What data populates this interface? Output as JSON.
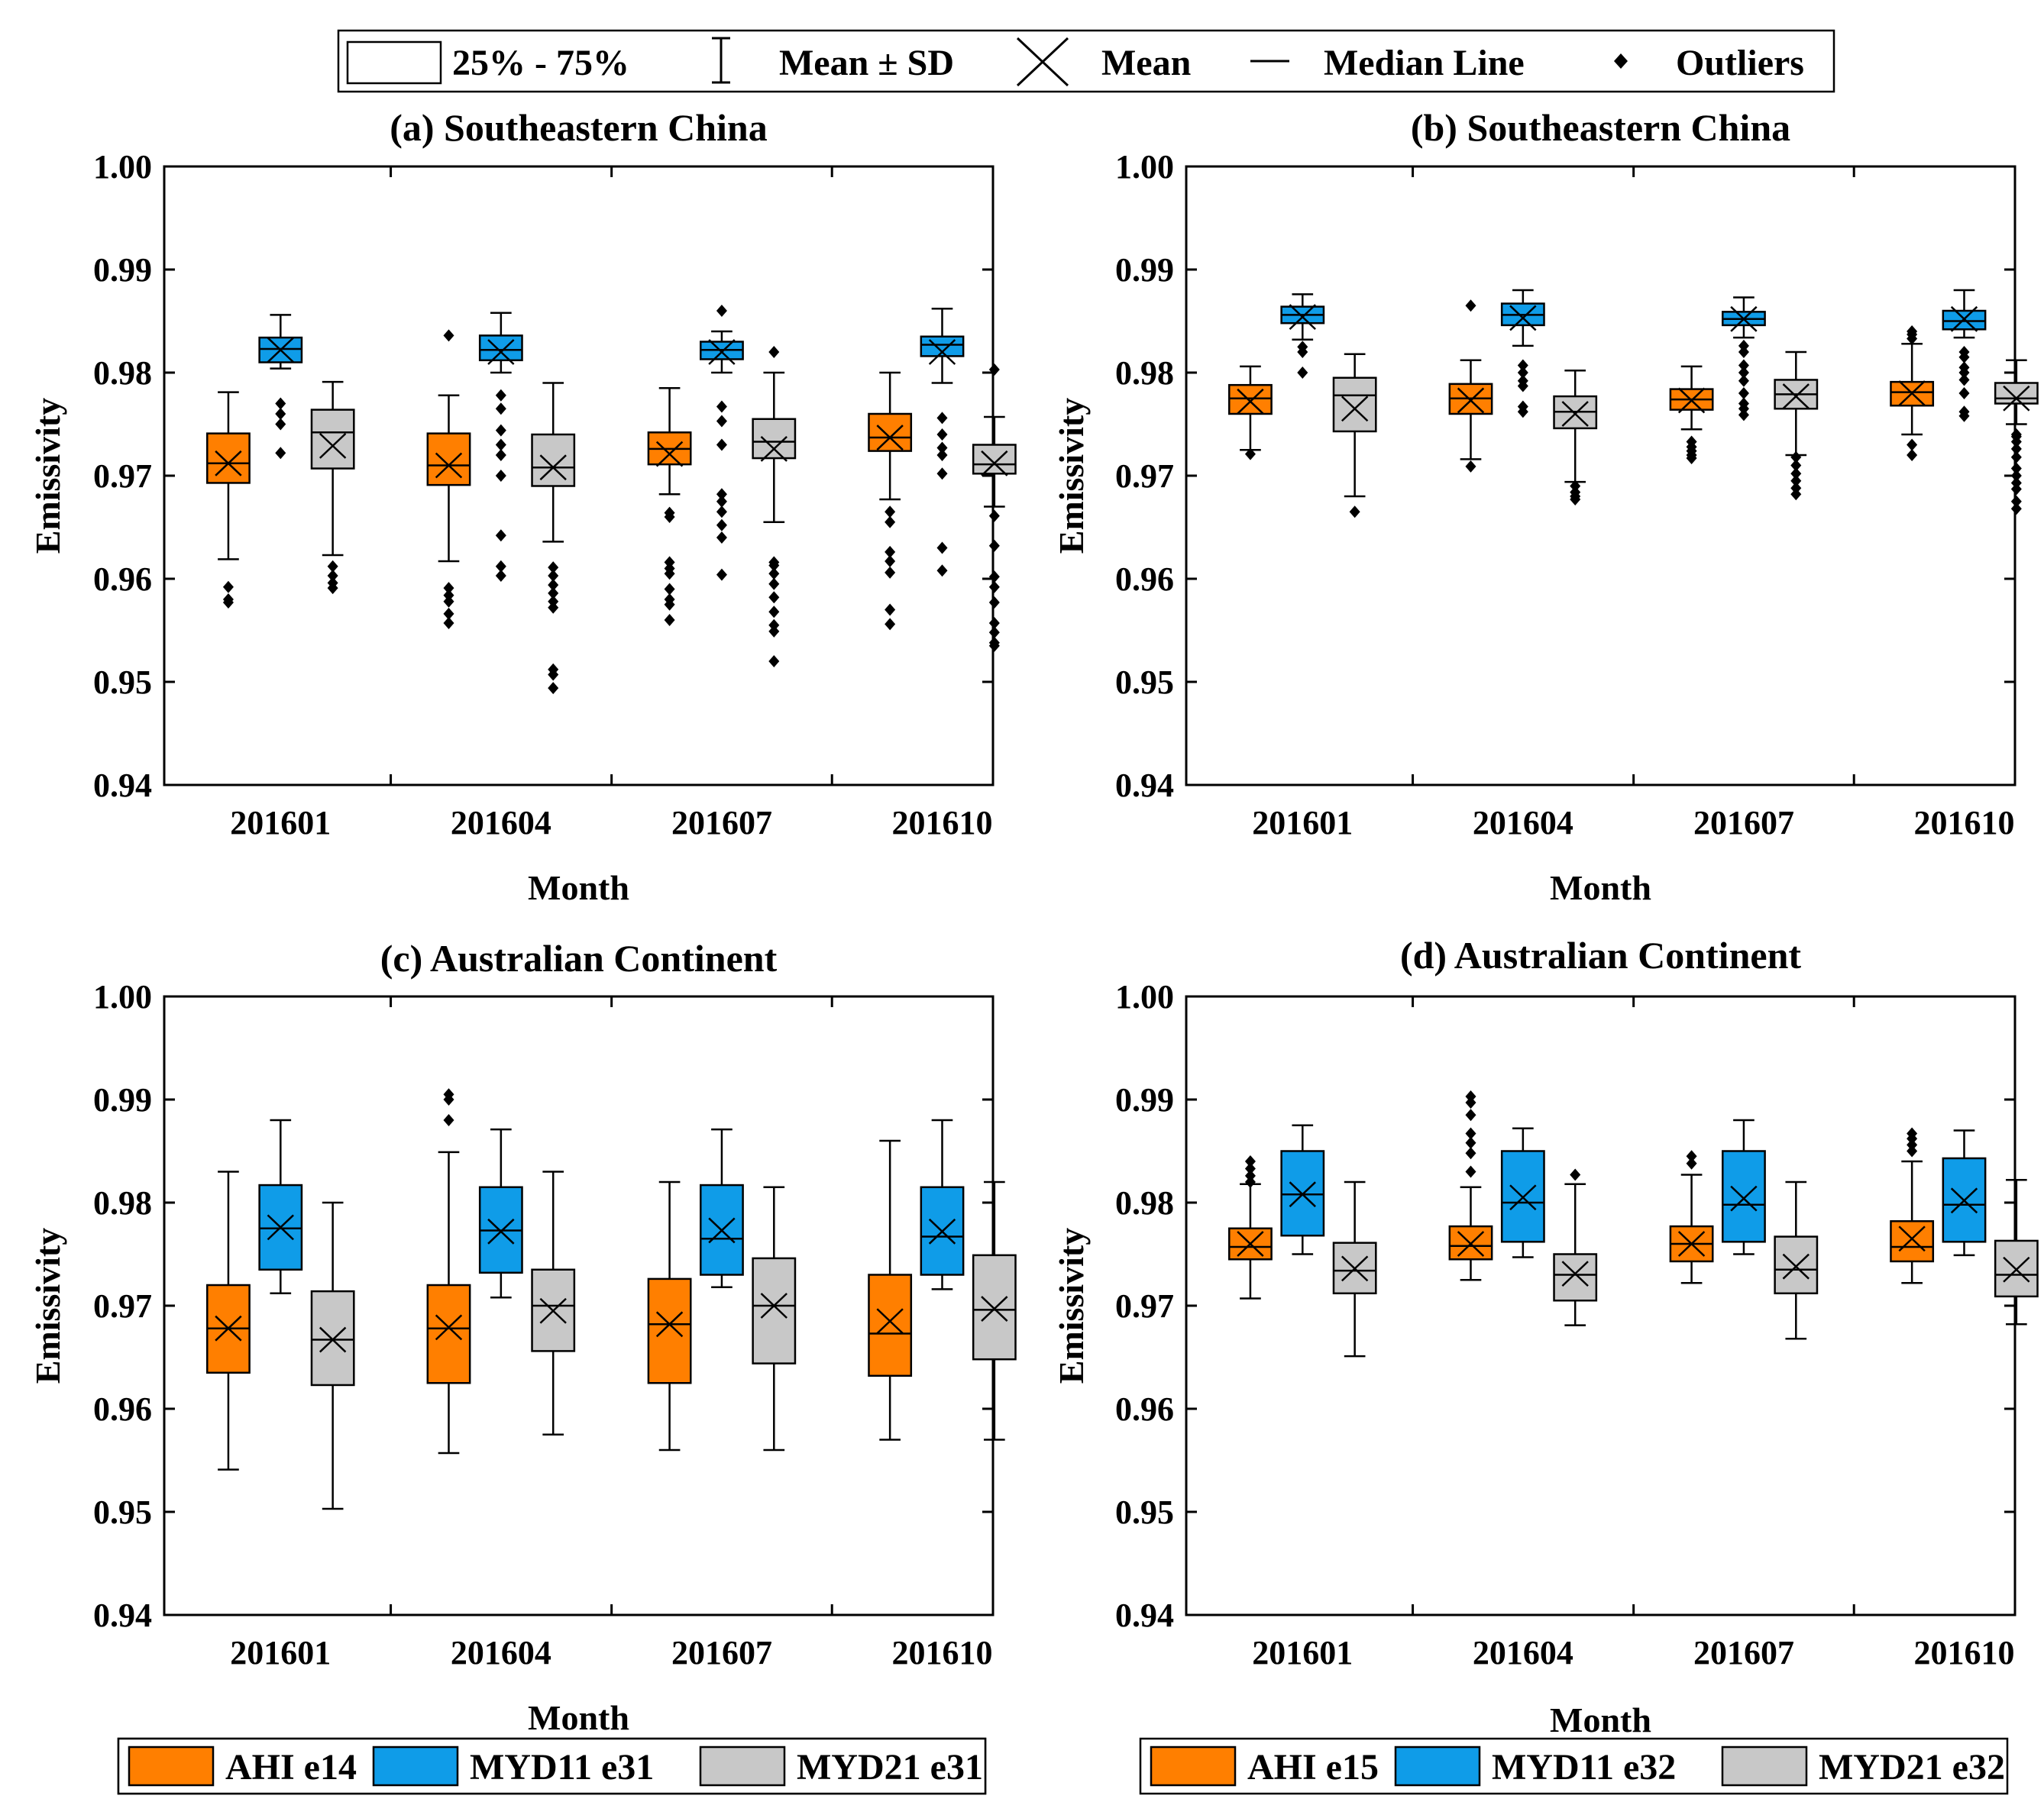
{
  "top_legend": {
    "box": "25% - 75%",
    "sd": "Mean ± SD",
    "mean": "Mean",
    "median": "Median Line",
    "outliers": "Outliers"
  },
  "colors": {
    "AHI": "#ff7f00",
    "MYD11": "#0f9ce8",
    "MYD21": "#c8c8c8"
  },
  "chart_data": [
    {
      "id": "a",
      "type": "box",
      "title": "(a) Southeastern China",
      "xlabel": "Month",
      "ylabel": "Emissivity",
      "ylim": [
        0.94,
        1.0
      ],
      "yticks": [
        "0.94",
        "0.95",
        "0.96",
        "0.97",
        "0.98",
        "0.99",
        "1.00"
      ],
      "categories": [
        "201601",
        "201604",
        "201607",
        "201610"
      ],
      "legend": [
        "AHI e14",
        "MYD11 e31",
        "MYD21 e31"
      ],
      "series": [
        {
          "name": "AHI",
          "boxes": [
            {
              "q1": 0.9693,
              "q3": 0.9741,
              "median": 0.9712,
              "mean": 0.9712,
              "wlo": 0.9619,
              "whi": 0.9781,
              "outliers": [
                0.9592,
                0.958,
                0.9577
              ]
            },
            {
              "q1": 0.9691,
              "q3": 0.9741,
              "median": 0.971,
              "mean": 0.971,
              "wlo": 0.9617,
              "whi": 0.9778,
              "outliers": [
                0.9591,
                0.9584,
                0.9578,
                0.9566,
                0.9557,
                0.9836
              ]
            },
            {
              "q1": 0.9711,
              "q3": 0.9742,
              "median": 0.9726,
              "mean": 0.9721,
              "wlo": 0.9682,
              "whi": 0.9785,
              "outliers": [
                0.9664,
                0.966,
                0.9616,
                0.961,
                0.9605,
                0.959,
                0.958,
                0.9575,
                0.956
              ]
            },
            {
              "q1": 0.9724,
              "q3": 0.976,
              "median": 0.9737,
              "mean": 0.9737,
              "wlo": 0.9677,
              "whi": 0.98,
              "outliers": [
                0.9665,
                0.9655,
                0.9626,
                0.9617,
                0.9606,
                0.957,
                0.9556
              ]
            }
          ]
        },
        {
          "name": "MYD11",
          "boxes": [
            {
              "q1": 0.981,
              "q3": 0.9834,
              "median": 0.9823,
              "mean": 0.9822,
              "wlo": 0.9804,
              "whi": 0.9856,
              "outliers": [
                0.977,
                0.976,
                0.975,
                0.9722
              ]
            },
            {
              "q1": 0.9812,
              "q3": 0.9836,
              "median": 0.9822,
              "mean": 0.982,
              "wlo": 0.98,
              "whi": 0.9858,
              "outliers": [
                0.9778,
                0.9765,
                0.9744,
                0.973,
                0.972,
                0.97,
                0.9642,
                0.9612,
                0.9603
              ]
            },
            {
              "q1": 0.9813,
              "q3": 0.983,
              "median": 0.9822,
              "mean": 0.982,
              "wlo": 0.98,
              "whi": 0.984,
              "outliers": [
                0.986,
                0.9767,
                0.9753,
                0.973,
                0.9682,
                0.9675,
                0.9665,
                0.9652,
                0.964,
                0.9604
              ]
            },
            {
              "q1": 0.9816,
              "q3": 0.9835,
              "median": 0.9827,
              "mean": 0.982,
              "wlo": 0.979,
              "whi": 0.9862,
              "outliers": [
                0.9756,
                0.974,
                0.9727,
                0.972,
                0.9702,
                0.963,
                0.9608
              ]
            }
          ]
        },
        {
          "name": "MYD21",
          "boxes": [
            {
              "q1": 0.9707,
              "q3": 0.9764,
              "median": 0.9742,
              "mean": 0.9729,
              "wlo": 0.9623,
              "whi": 0.9791,
              "outliers": [
                0.9612,
                0.9603,
                0.9596,
                0.9591
              ]
            },
            {
              "q1": 0.969,
              "q3": 0.974,
              "median": 0.9708,
              "mean": 0.9708,
              "wlo": 0.9636,
              "whi": 0.979,
              "outliers": [
                0.9611,
                0.9603,
                0.9594,
                0.9586,
                0.9578,
                0.9572,
                0.9512,
                0.9507,
                0.9494
              ]
            },
            {
              "q1": 0.9717,
              "q3": 0.9755,
              "median": 0.9733,
              "mean": 0.9726,
              "wlo": 0.9655,
              "whi": 0.98,
              "outliers": [
                0.982,
                0.9616,
                0.9613,
                0.9605,
                0.9595,
                0.9582,
                0.9568,
                0.9555,
                0.9549,
                0.952
              ]
            },
            {
              "q1": 0.9702,
              "q3": 0.973,
              "median": 0.9711,
              "mean": 0.9712,
              "wlo": 0.967,
              "whi": 0.9757,
              "outliers": [
                0.9803,
                0.9661,
                0.9632,
                0.9602,
                0.9592,
                0.9577,
                0.9557,
                0.9548,
                0.9538,
                0.9535
              ]
            }
          ]
        }
      ]
    },
    {
      "id": "b",
      "type": "box",
      "title": "(b) Southeastern China",
      "xlabel": "Month",
      "ylabel": "Emissivity",
      "ylim": [
        0.94,
        1.0
      ],
      "yticks": [
        "0.94",
        "0.95",
        "0.96",
        "0.97",
        "0.98",
        "0.99",
        "1.00"
      ],
      "categories": [
        "201601",
        "201604",
        "201607",
        "201610"
      ],
      "legend": [],
      "series": [
        {
          "name": "AHI",
          "boxes": [
            {
              "q1": 0.976,
              "q3": 0.9788,
              "median": 0.9775,
              "mean": 0.9772,
              "wlo": 0.9725,
              "whi": 0.9806,
              "outliers": [
                0.9721
              ]
            },
            {
              "q1": 0.976,
              "q3": 0.9789,
              "median": 0.9775,
              "mean": 0.9773,
              "wlo": 0.9716,
              "whi": 0.9812,
              "outliers": [
                0.9865,
                0.9709
              ]
            },
            {
              "q1": 0.9764,
              "q3": 0.9784,
              "median": 0.9774,
              "mean": 0.9773,
              "wlo": 0.9745,
              "whi": 0.9806,
              "outliers": [
                0.9733,
                0.9728,
                0.9724,
                0.972,
                0.9717
              ]
            },
            {
              "q1": 0.9768,
              "q3": 0.9791,
              "median": 0.9781,
              "mean": 0.978,
              "wlo": 0.974,
              "whi": 0.9828,
              "outliers": [
                0.984,
                0.9837,
                0.9833,
                0.973,
                0.972
              ]
            }
          ]
        },
        {
          "name": "MYD11",
          "boxes": [
            {
              "q1": 0.9848,
              "q3": 0.9864,
              "median": 0.9856,
              "mean": 0.9854,
              "wlo": 0.9832,
              "whi": 0.9876,
              "outliers": [
                0.9825,
                0.982,
                0.98
              ]
            },
            {
              "q1": 0.9846,
              "q3": 0.9867,
              "median": 0.9856,
              "mean": 0.9853,
              "wlo": 0.9826,
              "whi": 0.988,
              "outliers": [
                0.9807,
                0.98,
                0.9792,
                0.9787,
                0.9767,
                0.9762
              ]
            },
            {
              "q1": 0.9846,
              "q3": 0.9859,
              "median": 0.9852,
              "mean": 0.9852,
              "wlo": 0.9834,
              "whi": 0.9873,
              "outliers": [
                0.9826,
                0.982,
                0.9807,
                0.98,
                0.9792,
                0.978,
                0.977,
                0.9765,
                0.9759
              ]
            },
            {
              "q1": 0.9842,
              "q3": 0.986,
              "median": 0.985,
              "mean": 0.9852,
              "wlo": 0.9834,
              "whi": 0.988,
              "outliers": [
                0.982,
                0.9815,
                0.9805,
                0.98,
                0.9793,
                0.978,
                0.9762,
                0.9758
              ]
            }
          ]
        },
        {
          "name": "MYD21",
          "boxes": [
            {
              "q1": 0.9743,
              "q3": 0.9795,
              "median": 0.9778,
              "mean": 0.9765,
              "wlo": 0.968,
              "whi": 0.9818,
              "outliers": [
                0.9665
              ]
            },
            {
              "q1": 0.9746,
              "q3": 0.9777,
              "median": 0.9762,
              "mean": 0.976,
              "wlo": 0.9694,
              "whi": 0.9802,
              "outliers": [
                0.969,
                0.9684,
                0.968,
                0.9677
              ]
            },
            {
              "q1": 0.9765,
              "q3": 0.9793,
              "median": 0.9779,
              "mean": 0.9777,
              "wlo": 0.972,
              "whi": 0.982,
              "outliers": [
                0.9718,
                0.971,
                0.9702,
                0.9695,
                0.9688,
                0.9682
              ]
            },
            {
              "q1": 0.977,
              "q3": 0.979,
              "median": 0.9775,
              "mean": 0.9775,
              "wlo": 0.975,
              "whi": 0.9812,
              "outliers": [
                0.974,
                0.9738,
                0.9733,
                0.9726,
                0.9718,
                0.9707,
                0.97,
                0.9693,
                0.9687,
                0.9675,
                0.9668
              ]
            }
          ]
        }
      ]
    },
    {
      "id": "c",
      "type": "box",
      "title": "(c) Australian Continent",
      "xlabel": "Month",
      "ylabel": "Emissivity",
      "ylim": [
        0.94,
        1.0
      ],
      "yticks": [
        "0.94",
        "0.95",
        "0.96",
        "0.97",
        "0.98",
        "0.99",
        "1.00"
      ],
      "categories": [
        "201601",
        "201604",
        "201607",
        "201610"
      ],
      "legend": [
        "AHI e14",
        "MYD11 e31",
        "MYD21 e31"
      ],
      "series": [
        {
          "name": "AHI",
          "boxes": [
            {
              "q1": 0.9635,
              "q3": 0.972,
              "median": 0.9678,
              "mean": 0.9678,
              "wlo": 0.9541,
              "whi": 0.983,
              "outliers": []
            },
            {
              "q1": 0.9625,
              "q3": 0.972,
              "median": 0.9678,
              "mean": 0.9679,
              "wlo": 0.9557,
              "whi": 0.9849,
              "outliers": [
                0.9905,
                0.99,
                0.988
              ]
            },
            {
              "q1": 0.9625,
              "q3": 0.9726,
              "median": 0.9682,
              "mean": 0.9682,
              "wlo": 0.956,
              "whi": 0.982,
              "outliers": []
            },
            {
              "q1": 0.9632,
              "q3": 0.973,
              "median": 0.9673,
              "mean": 0.9685,
              "wlo": 0.957,
              "whi": 0.986,
              "outliers": []
            }
          ]
        },
        {
          "name": "MYD11",
          "boxes": [
            {
              "q1": 0.9735,
              "q3": 0.9817,
              "median": 0.9775,
              "mean": 0.9776,
              "wlo": 0.9712,
              "whi": 0.988,
              "outliers": []
            },
            {
              "q1": 0.9732,
              "q3": 0.9815,
              "median": 0.9773,
              "mean": 0.9772,
              "wlo": 0.9708,
              "whi": 0.9871,
              "outliers": []
            },
            {
              "q1": 0.973,
              "q3": 0.9817,
              "median": 0.9765,
              "mean": 0.9773,
              "wlo": 0.9718,
              "whi": 0.9871,
              "outliers": []
            },
            {
              "q1": 0.973,
              "q3": 0.9815,
              "median": 0.9767,
              "mean": 0.9772,
              "wlo": 0.9716,
              "whi": 0.988,
              "outliers": []
            }
          ]
        },
        {
          "name": "MYD21",
          "boxes": [
            {
              "q1": 0.9623,
              "q3": 0.9714,
              "median": 0.9667,
              "mean": 0.9667,
              "wlo": 0.9503,
              "whi": 0.98,
              "outliers": []
            },
            {
              "q1": 0.9656,
              "q3": 0.9735,
              "median": 0.97,
              "mean": 0.9695,
              "wlo": 0.9575,
              "whi": 0.983,
              "outliers": []
            },
            {
              "q1": 0.9644,
              "q3": 0.9746,
              "median": 0.97,
              "mean": 0.97,
              "wlo": 0.956,
              "whi": 0.9815,
              "outliers": []
            },
            {
              "q1": 0.9648,
              "q3": 0.9749,
              "median": 0.9696,
              "mean": 0.9697,
              "wlo": 0.957,
              "whi": 0.982,
              "outliers": []
            }
          ]
        }
      ]
    },
    {
      "id": "d",
      "type": "box",
      "title": "(d) Australian Continent",
      "xlabel": "Month",
      "ylabel": "Emissivity",
      "ylim": [
        0.94,
        1.0
      ],
      "yticks": [
        "0.94",
        "0.95",
        "0.96",
        "0.97",
        "0.98",
        "0.99",
        "1.00"
      ],
      "categories": [
        "201601",
        "201604",
        "201607",
        "201610"
      ],
      "legend": [
        "AHI e15",
        "MYD11 e32",
        "MYD21 e32"
      ],
      "series": [
        {
          "name": "AHI",
          "boxes": [
            {
              "q1": 0.9745,
              "q3": 0.9775,
              "median": 0.9757,
              "mean": 0.976,
              "wlo": 0.9707,
              "whi": 0.9818,
              "outliers": [
                0.984,
                0.9833,
                0.9826,
                0.982
              ]
            },
            {
              "q1": 0.9745,
              "q3": 0.9777,
              "median": 0.9758,
              "mean": 0.976,
              "wlo": 0.9725,
              "whi": 0.9815,
              "outliers": [
                0.9903,
                0.9897,
                0.9885,
                0.9867,
                0.9858,
                0.9848,
                0.983
              ]
            },
            {
              "q1": 0.9743,
              "q3": 0.9777,
              "median": 0.976,
              "mean": 0.976,
              "wlo": 0.9722,
              "whi": 0.9827,
              "outliers": [
                0.9845,
                0.9838
              ]
            },
            {
              "q1": 0.9743,
              "q3": 0.9782,
              "median": 0.9757,
              "mean": 0.9765,
              "wlo": 0.9722,
              "whi": 0.984,
              "outliers": [
                0.9867,
                0.9862,
                0.9856,
                0.985
              ]
            }
          ]
        },
        {
          "name": "MYD11",
          "boxes": [
            {
              "q1": 0.9768,
              "q3": 0.985,
              "median": 0.9808,
              "mean": 0.9808,
              "wlo": 0.975,
              "whi": 0.9875,
              "outliers": []
            },
            {
              "q1": 0.9762,
              "q3": 0.985,
              "median": 0.98,
              "mean": 0.9805,
              "wlo": 0.9747,
              "whi": 0.9872,
              "outliers": []
            },
            {
              "q1": 0.9762,
              "q3": 0.985,
              "median": 0.9798,
              "mean": 0.9804,
              "wlo": 0.975,
              "whi": 0.988,
              "outliers": []
            },
            {
              "q1": 0.9762,
              "q3": 0.9843,
              "median": 0.9798,
              "mean": 0.9802,
              "wlo": 0.9749,
              "whi": 0.987,
              "outliers": []
            }
          ]
        },
        {
          "name": "MYD21",
          "boxes": [
            {
              "q1": 0.9712,
              "q3": 0.9761,
              "median": 0.9734,
              "mean": 0.9736,
              "wlo": 0.9651,
              "whi": 0.982,
              "outliers": []
            },
            {
              "q1": 0.9705,
              "q3": 0.975,
              "median": 0.973,
              "mean": 0.9731,
              "wlo": 0.9681,
              "whi": 0.9818,
              "outliers": [
                0.9827
              ]
            },
            {
              "q1": 0.9712,
              "q3": 0.9767,
              "median": 0.9735,
              "mean": 0.9738,
              "wlo": 0.9668,
              "whi": 0.982,
              "outliers": []
            },
            {
              "q1": 0.9709,
              "q3": 0.9763,
              "median": 0.973,
              "mean": 0.9735,
              "wlo": 0.9682,
              "whi": 0.9822,
              "outliers": []
            }
          ]
        }
      ]
    }
  ]
}
